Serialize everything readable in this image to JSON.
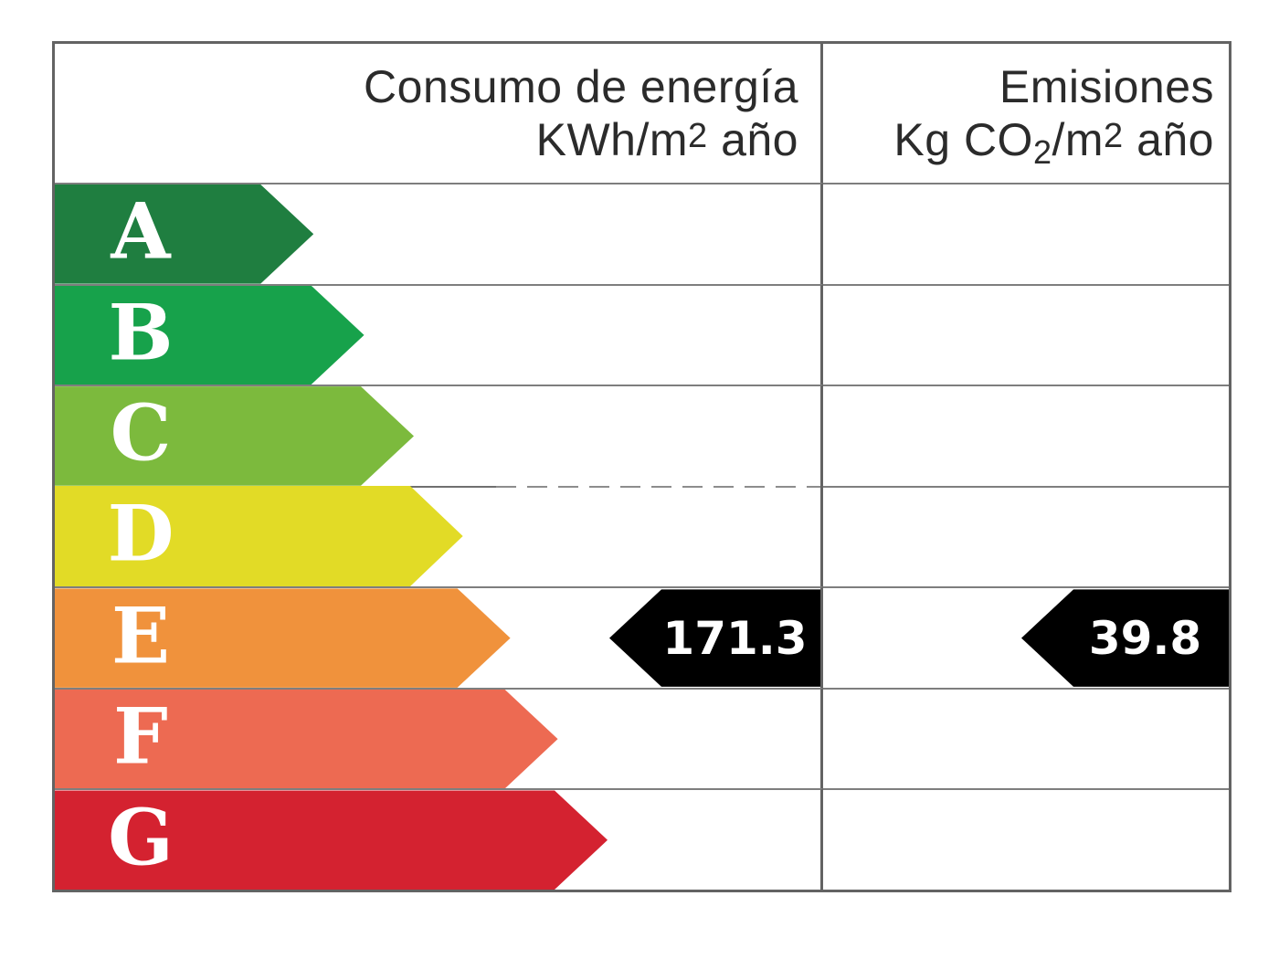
{
  "chart_data": {
    "type": "bar",
    "categories": [
      "A",
      "B",
      "C",
      "D",
      "E",
      "F",
      "G"
    ],
    "band_colors": [
      "#1F7E40",
      "#17A24B",
      "#7CBA3D",
      "#E2DB26",
      "#F0923C",
      "#ED6A52",
      "#D42230"
    ],
    "band_lengths_pct": [
      33.8,
      40.4,
      46.9,
      53.3,
      59.5,
      65.7,
      72.2
    ],
    "columns": [
      {
        "header": "Consumo de energía KWh/m2 año",
        "value": 171.3,
        "value_band": "E"
      },
      {
        "header": "Emisiones Kg CO2/m2 año",
        "value": 39.8,
        "value_band": "E"
      }
    ],
    "marker_color": "#000000",
    "legend_position": "none",
    "grid": "table-lines"
  },
  "table": {
    "columns": [
      {
        "title": "Consumo de energía",
        "unit_pre": "KWh/m",
        "unit_sup": "2",
        "unit_post": " año"
      },
      {
        "title": "Emisiones",
        "unit_pre": "Kg CO",
        "unit_sub": "2",
        "unit_mid": "/m",
        "unit_sup": "2",
        "unit_post": " año"
      }
    ],
    "bands": [
      {
        "letter": "A",
        "color": "#1F7E40",
        "width_pct": 33.8
      },
      {
        "letter": "B",
        "color": "#17A24B",
        "width_pct": 40.4
      },
      {
        "letter": "C",
        "color": "#7CBA3D",
        "width_pct": 46.9
      },
      {
        "letter": "D",
        "color": "#E2DB26",
        "width_pct": 53.3
      },
      {
        "letter": "E",
        "color": "#F0923C",
        "width_pct": 59.5
      },
      {
        "letter": "F",
        "color": "#ED6A52",
        "width_pct": 65.7
      },
      {
        "letter": "G",
        "color": "#D42230",
        "width_pct": 72.2
      }
    ],
    "values": {
      "consumption": "171.3",
      "emissions": "39.8"
    },
    "marker_color": "#000000",
    "letter_color": "#ffffff",
    "border_color": "#636363",
    "line_color": "#7e7e7e"
  }
}
